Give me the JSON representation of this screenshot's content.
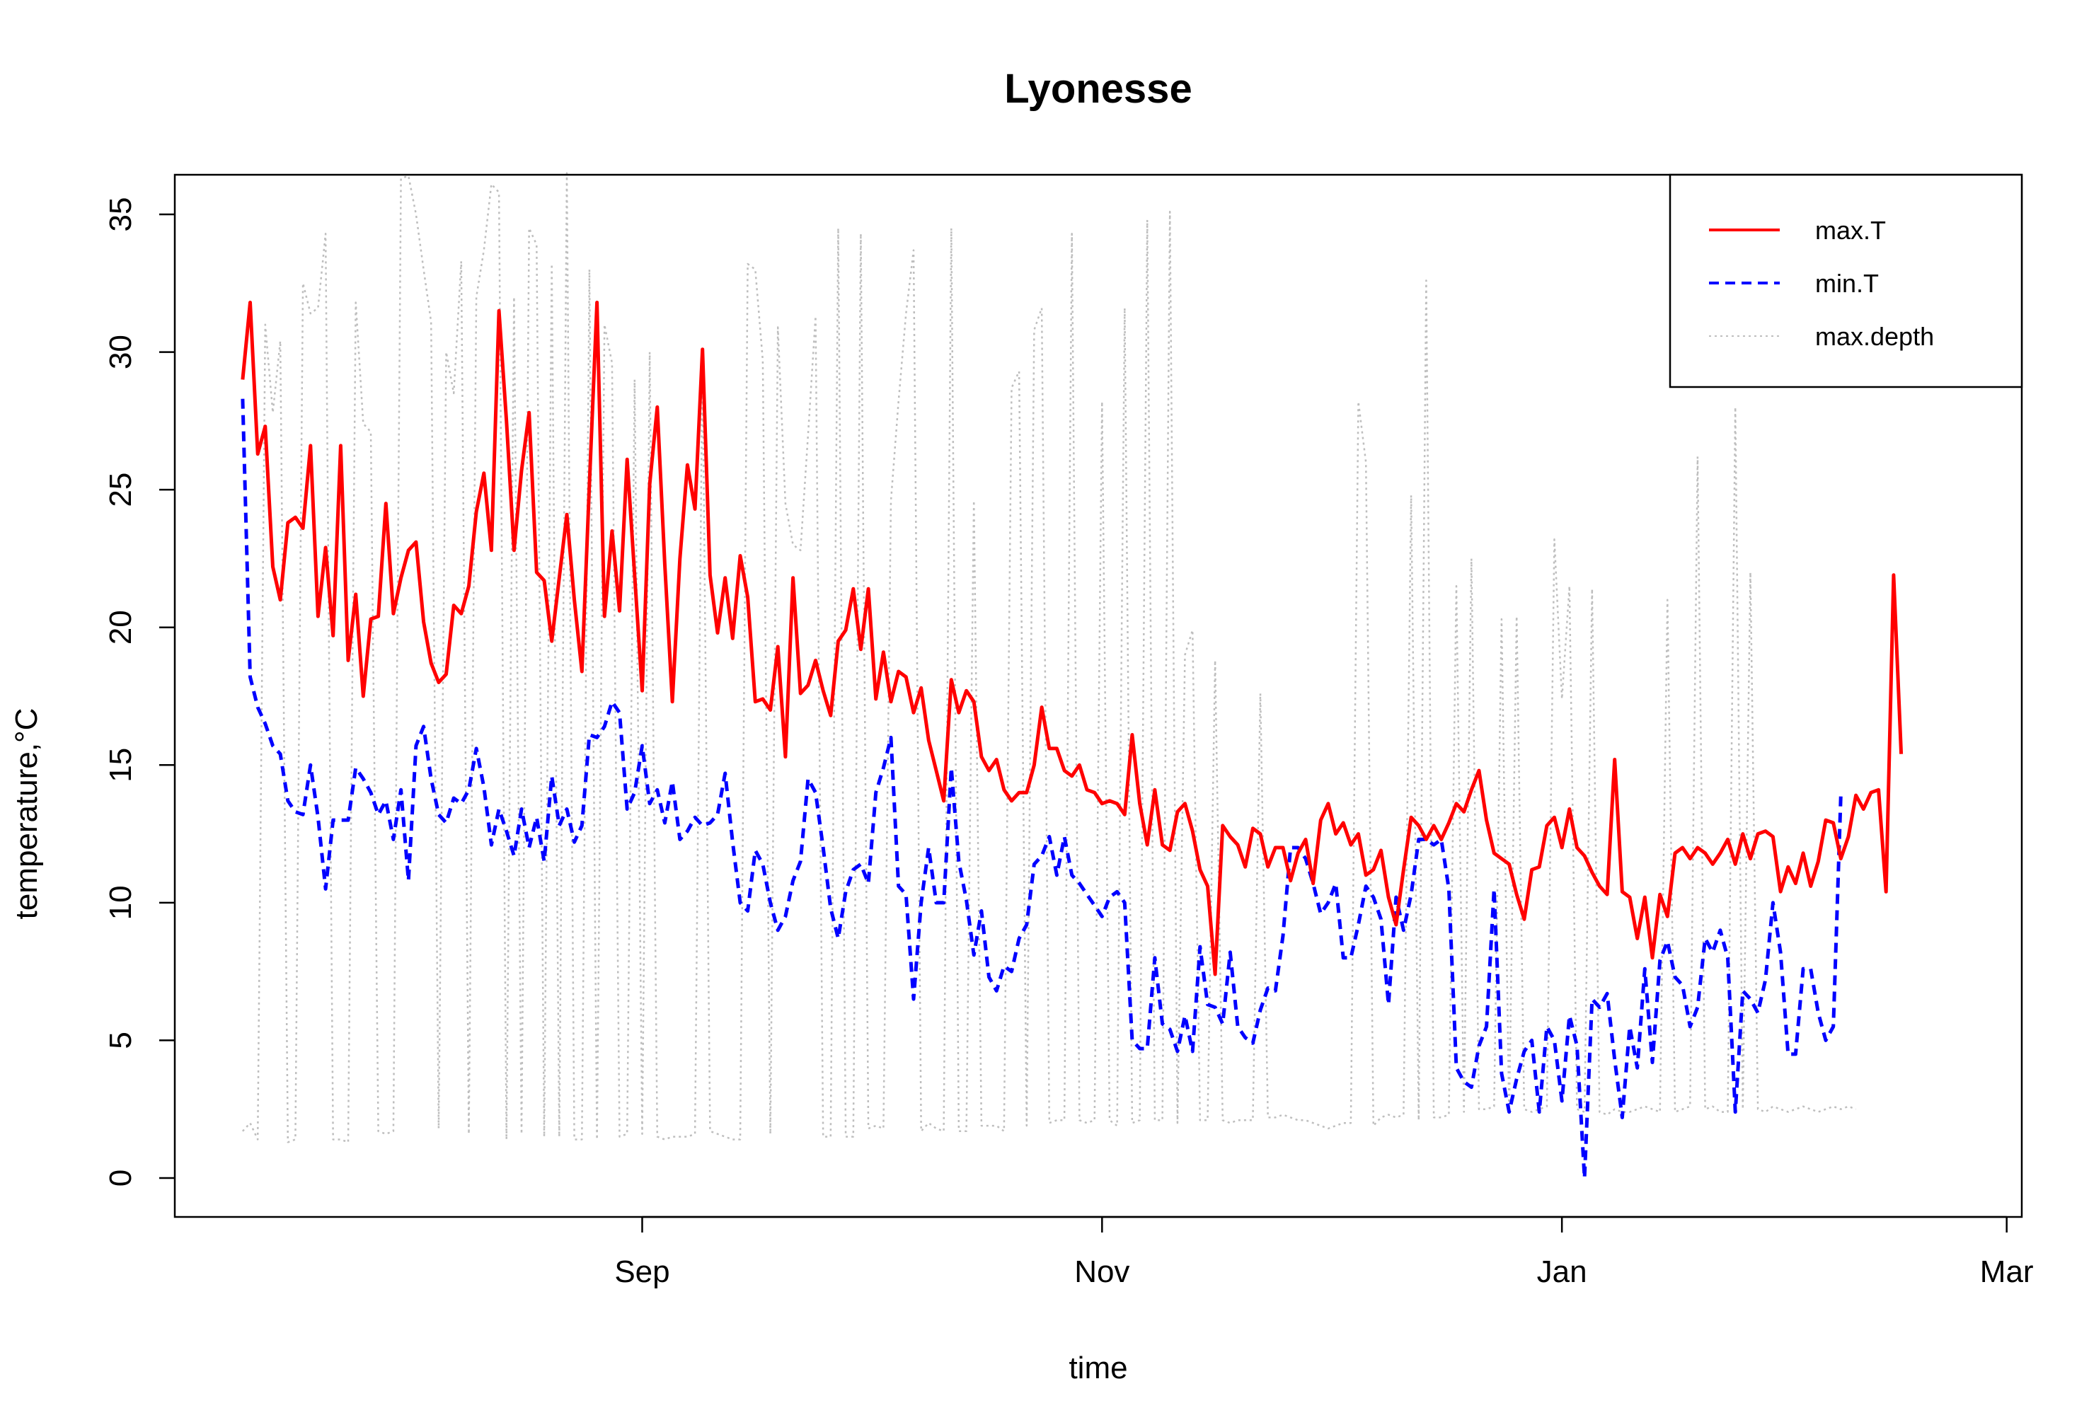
{
  "chart_data": {
    "type": "line",
    "title": "Lyonesse",
    "xlabel": "time",
    "ylabel": "temperature,°C",
    "ylim": [
      0,
      35
    ],
    "yticks": [
      0,
      5,
      10,
      15,
      20,
      25,
      30,
      35
    ],
    "xlim": [
      "2018-07-01",
      "2019-03-03"
    ],
    "xticks": [
      {
        "date": "2018-09-01",
        "label": "Sep"
      },
      {
        "date": "2018-11-01",
        "label": "Nov"
      },
      {
        "date": "2019-01-01",
        "label": "Jan"
      },
      {
        "date": "2019-03-01",
        "label": "Mar"
      }
    ],
    "legend": {
      "position": "top-right"
    },
    "colors": {
      "max.T": "#ff0000",
      "min.T": "#0000ff",
      "max.depth": "#bebebe"
    },
    "x_start": "2018-07-10",
    "x_step_days": 1,
    "series": [
      {
        "name": "max.T",
        "color": "#ff0000",
        "dash": "solid",
        "values": [
          29.0,
          31.8,
          26.3,
          27.3,
          22.2,
          21.0,
          23.8,
          24.0,
          23.6,
          26.6,
          20.4,
          22.9,
          19.7,
          26.6,
          18.8,
          21.2,
          17.5,
          20.3,
          20.4,
          24.5,
          20.5,
          21.8,
          22.8,
          23.1,
          20.2,
          18.7,
          18.0,
          18.3,
          20.8,
          20.5,
          21.5,
          24.2,
          25.6,
          22.8,
          31.5,
          27.5,
          22.8,
          25.7,
          27.8,
          22.0,
          21.7,
          19.5,
          21.8,
          24.1,
          21.0,
          18.4,
          25.2,
          31.8,
          20.4,
          23.5,
          20.6,
          26.1,
          21.9,
          17.7,
          25.2,
          28.0,
          22.3,
          17.3,
          22.5,
          25.9,
          24.3,
          30.1,
          21.9,
          19.8,
          21.8,
          19.6,
          22.6,
          21.1,
          17.3,
          17.4,
          17.0,
          19.3,
          15.3,
          21.8,
          17.6,
          17.9,
          18.8,
          17.7,
          16.8,
          19.5,
          19.9,
          21.4,
          19.2,
          21.4,
          17.4,
          19.1,
          17.3,
          18.4,
          18.2,
          16.9,
          17.8,
          15.9,
          14.8,
          13.7,
          18.1,
          16.9,
          17.7,
          17.3,
          15.3,
          14.8,
          15.2,
          14.1,
          13.7,
          14.0,
          14.0,
          15.0,
          17.1,
          15.6,
          15.6,
          14.8,
          14.6,
          15.0,
          14.1,
          14.0,
          13.6,
          13.7,
          13.6,
          13.2,
          16.1,
          13.6,
          12.1,
          14.1,
          12.1,
          11.9,
          13.3,
          13.6,
          12.6,
          11.2,
          10.6,
          7.4,
          12.8,
          12.4,
          12.1,
          11.3,
          12.7,
          12.5,
          11.3,
          12.0,
          12.0,
          10.8,
          11.8,
          12.3,
          10.7,
          13.0,
          13.6,
          12.5,
          12.9,
          12.1,
          12.5,
          11.0,
          11.2,
          11.9,
          10.2,
          9.2,
          11.2,
          13.1,
          12.8,
          12.3,
          12.8,
          12.3,
          12.9,
          13.6,
          13.3,
          14.1,
          14.8,
          13.0,
          11.8,
          11.6,
          11.4,
          10.3,
          9.4,
          11.2,
          11.3,
          12.8,
          13.1,
          12.0,
          13.4,
          12.0,
          11.7,
          11.1,
          10.6,
          10.3,
          15.2,
          10.4,
          10.2,
          8.7,
          10.2,
          8.0,
          10.3,
          9.5,
          11.8,
          12.0,
          11.6,
          12.0,
          11.8,
          11.4,
          11.8,
          12.3,
          11.4,
          12.5,
          11.6,
          12.5,
          12.6,
          12.4,
          10.4,
          11.3,
          10.7,
          11.8,
          10.6,
          11.5,
          13.0,
          12.9,
          11.6,
          12.4,
          13.9,
          13.4,
          14.0,
          14.1,
          10.4,
          21.9,
          15.4
        ]
      },
      {
        "name": "min.T",
        "color": "#0000ff",
        "dash": "dashed",
        "values": [
          28.3,
          18.2,
          17.1,
          16.5,
          15.7,
          15.4,
          13.7,
          13.3,
          13.2,
          15.0,
          13.1,
          10.5,
          13.0,
          13.0,
          13.0,
          14.9,
          14.5,
          14.0,
          13.2,
          13.7,
          12.3,
          14.1,
          10.8,
          15.7,
          16.4,
          14.5,
          13.2,
          12.9,
          13.8,
          13.6,
          14.1,
          15.6,
          14.2,
          12.1,
          13.4,
          12.6,
          11.7,
          13.4,
          12.0,
          13.1,
          11.5,
          14.6,
          12.8,
          13.4,
          12.2,
          12.8,
          16.1,
          16.0,
          16.4,
          17.3,
          16.9,
          13.4,
          14.0,
          15.7,
          13.6,
          14.1,
          12.9,
          14.4,
          12.3,
          12.6,
          13.1,
          12.8,
          12.9,
          13.2,
          14.7,
          12.2,
          10.0,
          9.7,
          11.9,
          11.4,
          10.0,
          9.0,
          9.5,
          10.8,
          11.5,
          14.5,
          14.0,
          12.0,
          9.8,
          8.7,
          10.4,
          11.2,
          11.4,
          10.7,
          14.0,
          14.9,
          16.0,
          10.6,
          10.3,
          6.5,
          10.0,
          12.0,
          10.0,
          10.0,
          14.9,
          11.5,
          10.1,
          8.1,
          9.7,
          7.3,
          6.8,
          7.7,
          7.5,
          8.7,
          9.2,
          11.4,
          11.7,
          12.4,
          11.0,
          12.4,
          11.0,
          10.7,
          10.3,
          9.9,
          9.5,
          10.2,
          10.4,
          10.0,
          5.0,
          4.7,
          4.7,
          8.0,
          5.6,
          5.4,
          4.6,
          5.9,
          4.6,
          8.4,
          6.3,
          6.2,
          5.6,
          8.2,
          5.5,
          5.1,
          4.9,
          6.1,
          6.9,
          6.8,
          8.8,
          12.0,
          12.0,
          11.6,
          10.7,
          9.6,
          10.0,
          10.7,
          8.0,
          8.0,
          9.2,
          10.6,
          10.2,
          9.4,
          6.3,
          10.2,
          9.0,
          10.3,
          12.3,
          12.3,
          12.1,
          12.3,
          10.5,
          4.0,
          3.5,
          3.3,
          4.8,
          5.5,
          10.5,
          3.8,
          2.4,
          3.6,
          4.6,
          5.0,
          2.4,
          5.5,
          5.0,
          2.8,
          5.9,
          4.8,
          0.0,
          6.5,
          6.2,
          6.7,
          4.3,
          2.2,
          5.5,
          4.0,
          7.6,
          4.2,
          7.9,
          8.6,
          7.3,
          7.0,
          5.5,
          6.2,
          8.7,
          8.2,
          9.0,
          8.0,
          2.4,
          6.8,
          6.5,
          6.0,
          7.2,
          10.0,
          8.2,
          4.5,
          4.5,
          7.6,
          7.6,
          6.0,
          5.0,
          5.5,
          13.9
        ]
      },
      {
        "name": "max.depth",
        "color": "#bebebe",
        "dash": "dotted",
        "values": [
          1.7,
          2.0,
          1.4,
          31.0,
          27.8,
          30.4,
          1.3,
          1.4,
          32.5,
          31.4,
          31.6,
          34.3,
          1.4,
          1.4,
          1.3,
          31.8,
          27.4,
          27.1,
          1.7,
          1.6,
          1.7,
          36.3,
          36.4,
          35.0,
          33.0,
          31.1,
          1.8,
          30.0,
          28.5,
          33.3,
          1.6,
          32.0,
          33.7,
          36.1,
          35.8,
          1.4,
          32.0,
          1.6,
          34.5,
          33.9,
          1.5,
          33.2,
          1.5,
          36.5,
          1.4,
          1.4,
          33.0,
          1.4,
          31.0,
          29.6,
          1.5,
          1.6,
          29.0,
          1.6,
          30.0,
          1.5,
          1.4,
          1.5,
          1.5,
          1.5,
          1.6,
          30.0,
          1.7,
          1.6,
          1.5,
          1.4,
          1.4,
          33.2,
          33.0,
          29.7,
          1.6,
          30.9,
          24.5,
          23.0,
          22.8,
          27.0,
          31.3,
          1.5,
          1.5,
          34.5,
          1.5,
          1.5,
          34.3,
          1.8,
          1.9,
          1.8,
          24.6,
          28.2,
          31.4,
          33.7,
          1.7,
          2.0,
          1.8,
          1.7,
          34.5,
          1.7,
          1.7,
          24.6,
          1.9,
          1.9,
          1.9,
          1.7,
          28.7,
          29.3,
          1.9,
          30.8,
          31.6,
          2.0,
          2.1,
          2.1,
          34.3,
          2.1,
          2.0,
          2.1,
          28.2,
          2.1,
          1.9,
          31.6,
          2.0,
          2.1,
          34.8,
          2.1,
          2.1,
          35.1,
          2.0,
          19.0,
          19.9,
          2.1,
          2.1,
          18.8,
          2.1,
          2.0,
          2.1,
          2.1,
          2.1,
          17.6,
          2.2,
          2.2,
          2.3,
          2.2,
          2.1,
          2.1,
          2.0,
          1.9,
          1.8,
          1.9,
          2.0,
          2.0,
          28.2,
          26.0,
          1.9,
          2.2,
          2.3,
          2.2,
          2.3,
          24.8,
          2.1,
          32.6,
          2.2,
          2.2,
          2.3,
          21.5,
          2.4,
          22.5,
          2.5,
          2.5,
          2.6,
          20.3,
          2.3,
          20.4,
          2.5,
          2.4,
          2.5,
          2.6,
          23.2,
          17.4,
          21.5,
          2.5,
          2.4,
          21.4,
          2.4,
          2.3,
          2.5,
          2.4,
          2.4,
          2.5,
          2.6,
          2.5,
          2.4,
          21.0,
          2.4,
          2.5,
          2.6,
          26.2,
          2.5,
          2.6,
          2.4,
          2.4,
          28.0,
          2.5,
          22.0,
          2.5,
          2.4,
          2.6,
          2.5,
          2.4,
          2.5,
          2.6,
          2.5,
          2.4,
          2.5,
          2.6,
          2.5,
          2.6,
          2.5
        ]
      }
    ]
  }
}
